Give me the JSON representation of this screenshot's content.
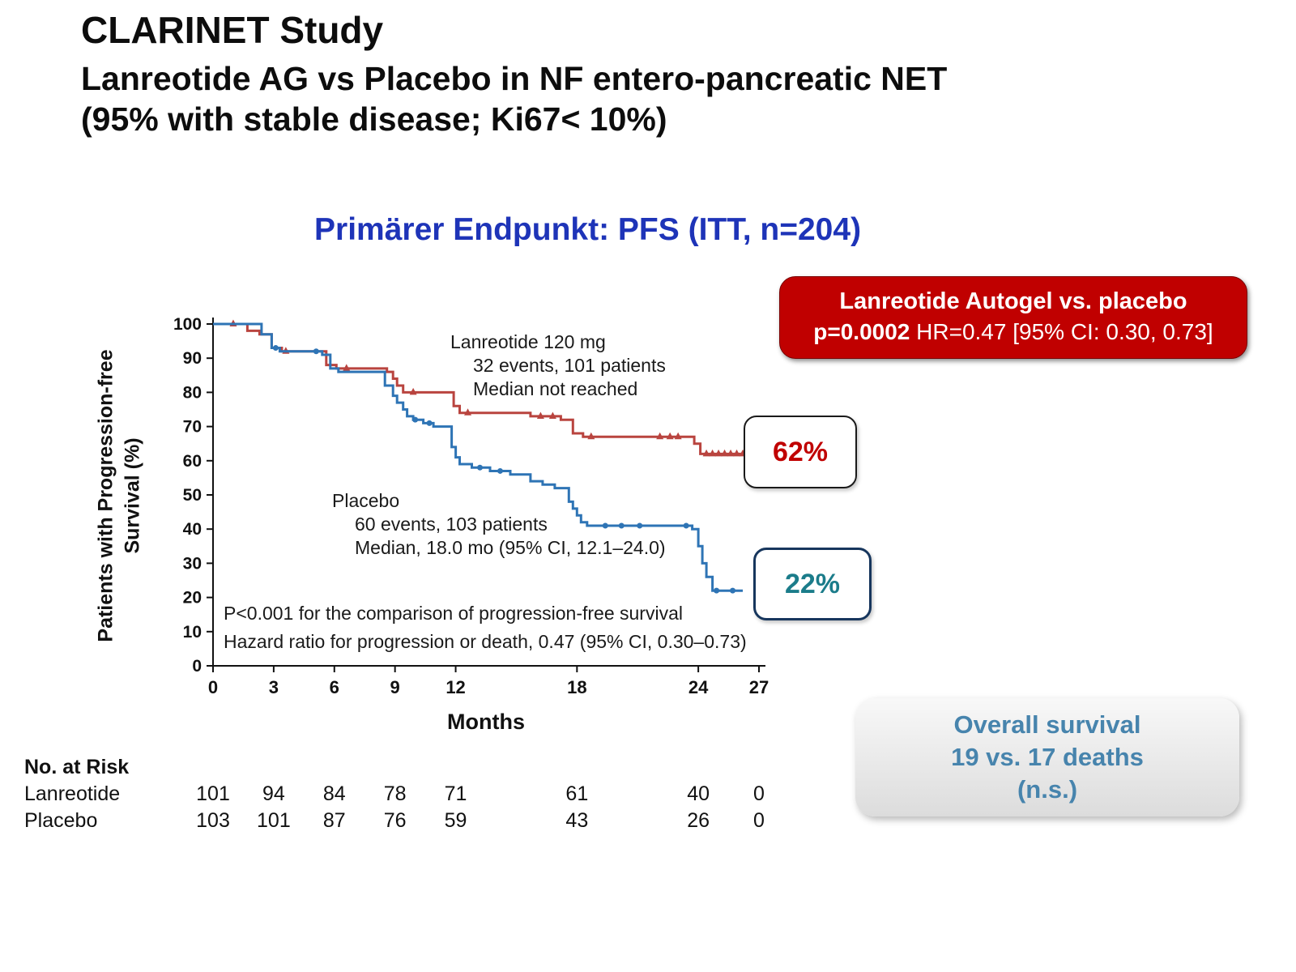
{
  "title": {
    "line1": "CLARINET Study",
    "line2": "Lanreotide AG vs Placebo in NF entero-pancreatic NET",
    "line3": "(95% with stable disease; Ki67< 10%)"
  },
  "subtitle": "Primärer Endpunkt: PFS (ITT, n=204)",
  "stats_box": {
    "line1": "Lanreotide Autogel vs. placebo",
    "p_label": "p=0.0002",
    "hr_text": " HR=0.47 [95% CI: 0.30, 0.73]",
    "bg_color": "#c00000"
  },
  "callouts": {
    "lanreotide_pct": "62%",
    "placebo_pct": "22%",
    "lanreotide_pct_color": "#c00000",
    "placebo_pct_color": "#1b7c8a"
  },
  "overall_survival_box": {
    "line1": "Overall survival",
    "line2": "19 vs. 17 deaths",
    "line3": "(n.s.)",
    "text_color": "#4784ad"
  },
  "colors": {
    "heading_blue": "#1e34b8",
    "curve_lanreotide": "#b9443f",
    "curve_placebo": "#2e74b5"
  },
  "chart_data": {
    "type": "line",
    "subtype": "kaplan-meier-step",
    "xlabel": "Months",
    "ylabel": "Patients with Progression-free Survival (%)",
    "ylabel_line1": "Patients with Progression-free",
    "ylabel_line2": "Survival (%)",
    "xlim": [
      0,
      27
    ],
    "ylim": [
      0,
      100
    ],
    "x_ticks": [
      0,
      3,
      6,
      9,
      12,
      18,
      24,
      27
    ],
    "y_ticks": [
      0,
      10,
      20,
      30,
      40,
      50,
      60,
      70,
      80,
      90,
      100
    ],
    "grid": false,
    "series": [
      {
        "name": "Lanreotide 120 mg",
        "color": "#b9443f",
        "marker": "triangle",
        "events": 32,
        "patients": 101,
        "median": "not reached",
        "final_pct": 62,
        "annotation": {
          "line1": "Lanreotide 120 mg",
          "line2": "32 events, 101 patients",
          "line3": "Median not reached"
        },
        "steps": [
          [
            0,
            100
          ],
          [
            1.7,
            100
          ],
          [
            1.7,
            98
          ],
          [
            2.3,
            98
          ],
          [
            2.3,
            97
          ],
          [
            2.9,
            97
          ],
          [
            2.9,
            93
          ],
          [
            3.4,
            93
          ],
          [
            3.4,
            92
          ],
          [
            5.6,
            92
          ],
          [
            5.6,
            88
          ],
          [
            6.1,
            88
          ],
          [
            6.1,
            87
          ],
          [
            8.6,
            87
          ],
          [
            8.6,
            86
          ],
          [
            8.9,
            86
          ],
          [
            8.9,
            84
          ],
          [
            9.1,
            84
          ],
          [
            9.1,
            82
          ],
          [
            9.4,
            82
          ],
          [
            9.4,
            80
          ],
          [
            11.9,
            80
          ],
          [
            11.9,
            76
          ],
          [
            12.2,
            76
          ],
          [
            12.2,
            74
          ],
          [
            15.7,
            74
          ],
          [
            15.7,
            73
          ],
          [
            17.2,
            73
          ],
          [
            17.2,
            72
          ],
          [
            17.8,
            72
          ],
          [
            17.8,
            68
          ],
          [
            18.3,
            68
          ],
          [
            18.3,
            67
          ],
          [
            23.8,
            67
          ],
          [
            23.8,
            65
          ],
          [
            24.1,
            65
          ],
          [
            24.1,
            62
          ],
          [
            26.3,
            62
          ]
        ],
        "censor_marks": [
          [
            1.0,
            100
          ],
          [
            3.6,
            92
          ],
          [
            6.6,
            87
          ],
          [
            9.9,
            80
          ],
          [
            12.6,
            74
          ],
          [
            16.2,
            73
          ],
          [
            16.8,
            73
          ],
          [
            18.7,
            67
          ],
          [
            22.1,
            67
          ],
          [
            22.6,
            67
          ],
          [
            23.0,
            67
          ],
          [
            24.4,
            62
          ],
          [
            24.7,
            62
          ],
          [
            25.0,
            62
          ],
          [
            25.3,
            62
          ],
          [
            25.6,
            62
          ],
          [
            25.9,
            62
          ],
          [
            26.2,
            62
          ]
        ]
      },
      {
        "name": "Placebo",
        "color": "#2e74b5",
        "marker": "circle",
        "events": 60,
        "patients": 103,
        "median": "18.0 mo (95% CI, 12.1–24.0)",
        "final_pct": 22,
        "annotation": {
          "line1": "Placebo",
          "line2": "60 events, 103 patients",
          "line3": "Median, 18.0 mo (95% CI, 12.1–24.0)"
        },
        "steps": [
          [
            0,
            100
          ],
          [
            2.4,
            100
          ],
          [
            2.4,
            97
          ],
          [
            2.9,
            97
          ],
          [
            2.9,
            93
          ],
          [
            3.3,
            93
          ],
          [
            3.3,
            92
          ],
          [
            5.4,
            92
          ],
          [
            5.4,
            91
          ],
          [
            5.8,
            91
          ],
          [
            5.8,
            87
          ],
          [
            6.2,
            87
          ],
          [
            6.2,
            86
          ],
          [
            8.5,
            86
          ],
          [
            8.5,
            82
          ],
          [
            8.9,
            82
          ],
          [
            8.9,
            79
          ],
          [
            9.1,
            79
          ],
          [
            9.1,
            77
          ],
          [
            9.4,
            77
          ],
          [
            9.4,
            75
          ],
          [
            9.6,
            75
          ],
          [
            9.6,
            73
          ],
          [
            9.9,
            73
          ],
          [
            9.9,
            72
          ],
          [
            10.4,
            72
          ],
          [
            10.4,
            71
          ],
          [
            10.9,
            71
          ],
          [
            10.9,
            70
          ],
          [
            11.8,
            70
          ],
          [
            11.8,
            64
          ],
          [
            12.0,
            64
          ],
          [
            12.0,
            61
          ],
          [
            12.2,
            61
          ],
          [
            12.2,
            59
          ],
          [
            12.8,
            59
          ],
          [
            12.8,
            58
          ],
          [
            13.7,
            58
          ],
          [
            13.7,
            57
          ],
          [
            14.7,
            57
          ],
          [
            14.7,
            56
          ],
          [
            15.7,
            56
          ],
          [
            15.7,
            54
          ],
          [
            16.3,
            54
          ],
          [
            16.3,
            53
          ],
          [
            16.9,
            53
          ],
          [
            16.9,
            52
          ],
          [
            17.6,
            52
          ],
          [
            17.6,
            48
          ],
          [
            17.8,
            48
          ],
          [
            17.8,
            46
          ],
          [
            18.0,
            46
          ],
          [
            18.0,
            44
          ],
          [
            18.2,
            44
          ],
          [
            18.2,
            42
          ],
          [
            18.5,
            42
          ],
          [
            18.5,
            41
          ],
          [
            23.7,
            41
          ],
          [
            23.7,
            40
          ],
          [
            24.0,
            40
          ],
          [
            24.0,
            35
          ],
          [
            24.2,
            35
          ],
          [
            24.2,
            30
          ],
          [
            24.4,
            30
          ],
          [
            24.4,
            26
          ],
          [
            24.7,
            26
          ],
          [
            24.7,
            22
          ],
          [
            26.2,
            22
          ]
        ],
        "censor_marks": [
          [
            3.1,
            93
          ],
          [
            5.1,
            92
          ],
          [
            10.0,
            72
          ],
          [
            10.7,
            71
          ],
          [
            13.2,
            58
          ],
          [
            14.2,
            57
          ],
          [
            19.4,
            41
          ],
          [
            20.2,
            41
          ],
          [
            21.1,
            41
          ],
          [
            23.4,
            41
          ],
          [
            24.9,
            22
          ],
          [
            25.7,
            22
          ]
        ]
      }
    ],
    "footnote_line1": "P<0.001 for the comparison of progression-free survival",
    "footnote_line2": "Hazard ratio for progression or death, 0.47 (95% CI, 0.30–0.73)",
    "risk_table": {
      "header": "No. at Risk",
      "rows": [
        {
          "label": "Lanreotide",
          "values": [
            101,
            94,
            84,
            78,
            71,
            61,
            40,
            0
          ]
        },
        {
          "label": "Placebo",
          "values": [
            103,
            101,
            87,
            76,
            59,
            43,
            26,
            0
          ]
        }
      ]
    }
  }
}
